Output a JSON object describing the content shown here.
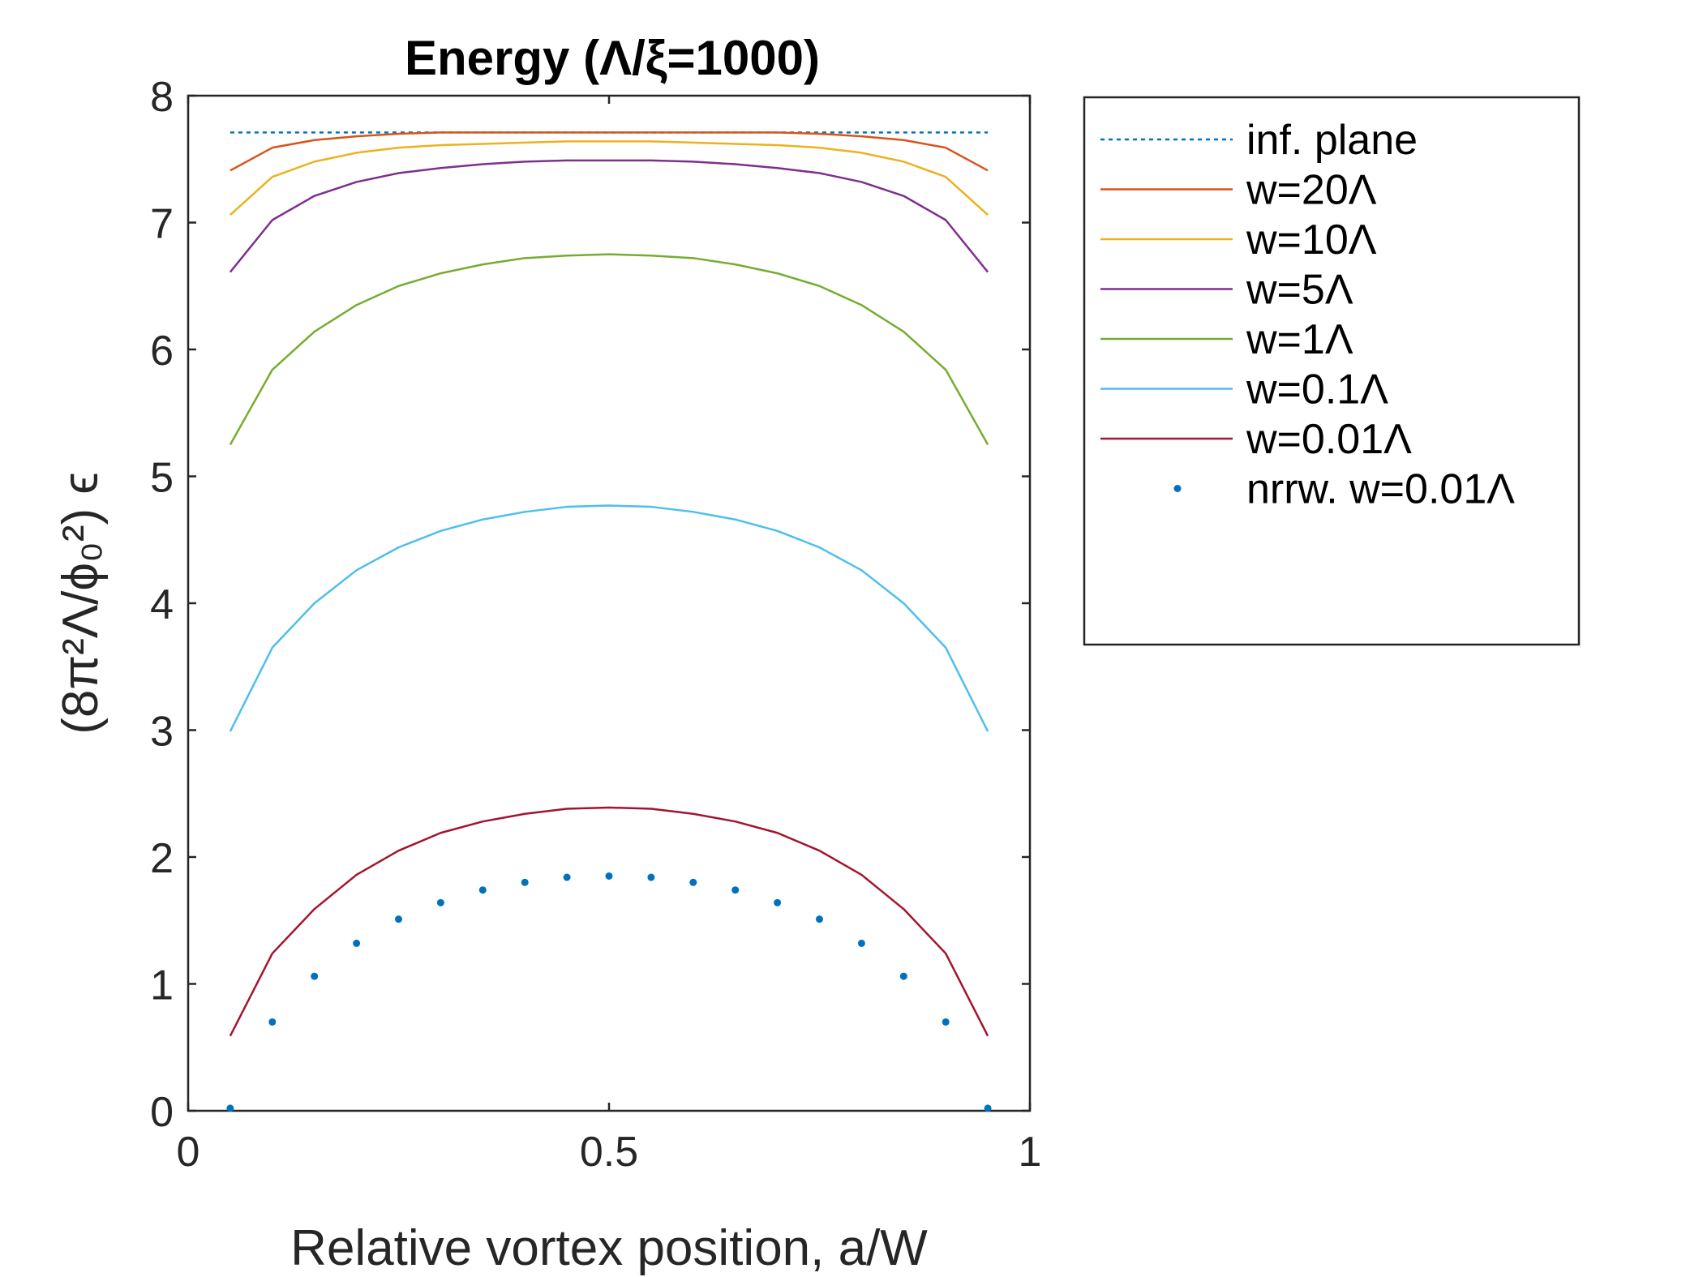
{
  "chart_data": {
    "type": "line",
    "title": "Energy (Λ/ξ=1000)",
    "xlabel": "Relative vortex position, a/W",
    "ylabel": "(8π²Λ/ϕ₀²) ϵ",
    "xlim": [
      0,
      1
    ],
    "ylim": [
      0,
      8
    ],
    "xticks": [
      0,
      0.5,
      1
    ],
    "xtick_labels": [
      "0",
      "0.5",
      "1"
    ],
    "yticks": [
      0,
      1,
      2,
      3,
      4,
      5,
      6,
      7,
      8
    ],
    "ytick_labels": [
      "0",
      "1",
      "2",
      "3",
      "4",
      "5",
      "6",
      "7",
      "8"
    ],
    "grid": false,
    "legend_position": "outside-right-top",
    "x": [
      0.05,
      0.1,
      0.15,
      0.2,
      0.25,
      0.3,
      0.35,
      0.4,
      0.45,
      0.5,
      0.55,
      0.6,
      0.65,
      0.7,
      0.75,
      0.8,
      0.85,
      0.9,
      0.95
    ],
    "series": [
      {
        "name": "inf. plane",
        "style": "dotted",
        "color": "#0072BD",
        "values": [
          7.71,
          7.71,
          7.71,
          7.71,
          7.71,
          7.71,
          7.71,
          7.71,
          7.71,
          7.71,
          7.71,
          7.71,
          7.71,
          7.71,
          7.71,
          7.71,
          7.71,
          7.71,
          7.71
        ]
      },
      {
        "name": "w=20Λ",
        "style": "solid",
        "color": "#D95319",
        "values": [
          7.41,
          7.59,
          7.65,
          7.68,
          7.7,
          7.71,
          7.71,
          7.71,
          7.71,
          7.71,
          7.71,
          7.71,
          7.71,
          7.71,
          7.7,
          7.68,
          7.65,
          7.59,
          7.41
        ]
      },
      {
        "name": "w=10Λ",
        "style": "solid",
        "color": "#EDB120",
        "values": [
          7.06,
          7.36,
          7.48,
          7.55,
          7.59,
          7.61,
          7.62,
          7.63,
          7.64,
          7.64,
          7.64,
          7.63,
          7.62,
          7.61,
          7.59,
          7.55,
          7.48,
          7.36,
          7.06
        ]
      },
      {
        "name": "w=5Λ",
        "style": "solid",
        "color": "#7E2F8E",
        "values": [
          6.61,
          7.02,
          7.21,
          7.32,
          7.39,
          7.43,
          7.46,
          7.48,
          7.49,
          7.49,
          7.49,
          7.48,
          7.46,
          7.43,
          7.39,
          7.32,
          7.21,
          7.02,
          6.61
        ]
      },
      {
        "name": "w=1Λ",
        "style": "solid",
        "color": "#77AC30",
        "values": [
          5.25,
          5.84,
          6.14,
          6.35,
          6.5,
          6.6,
          6.67,
          6.72,
          6.74,
          6.75,
          6.74,
          6.72,
          6.67,
          6.6,
          6.5,
          6.35,
          6.14,
          5.84,
          5.25
        ]
      },
      {
        "name": "w=0.1Λ",
        "style": "solid",
        "color": "#4DBEEE",
        "values": [
          2.99,
          3.65,
          4.0,
          4.26,
          4.44,
          4.57,
          4.66,
          4.72,
          4.76,
          4.77,
          4.76,
          4.72,
          4.66,
          4.57,
          4.44,
          4.26,
          4.0,
          3.65,
          2.99
        ]
      },
      {
        "name": "w=0.01Λ",
        "style": "solid",
        "color": "#A2142F",
        "values": [
          0.59,
          1.24,
          1.59,
          1.86,
          2.05,
          2.19,
          2.28,
          2.34,
          2.38,
          2.39,
          2.38,
          2.34,
          2.28,
          2.19,
          2.05,
          1.86,
          1.59,
          1.24,
          0.59
        ]
      },
      {
        "name": "nrrw. w=0.01Λ",
        "style": "markers",
        "color": "#0072BD",
        "values": [
          0.02,
          0.7,
          1.06,
          1.32,
          1.51,
          1.64,
          1.74,
          1.8,
          1.84,
          1.85,
          1.84,
          1.8,
          1.74,
          1.64,
          1.51,
          1.32,
          1.06,
          0.7,
          0.02
        ]
      }
    ]
  }
}
